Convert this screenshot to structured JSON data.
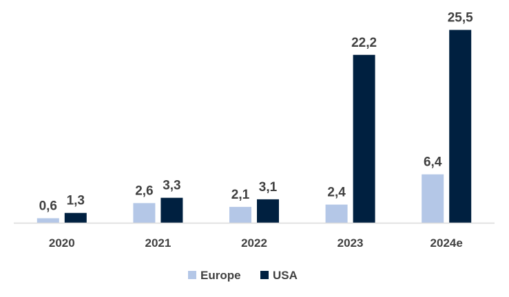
{
  "chart_data": {
    "type": "bar",
    "categories": [
      "2020",
      "2021",
      "2022",
      "2023",
      "2024e"
    ],
    "series": [
      {
        "name": "Europe",
        "values": [
          0.6,
          2.6,
          2.1,
          2.4,
          6.4
        ],
        "labels": [
          "0,6",
          "2,6",
          "2,1",
          "2,4",
          "6,4"
        ],
        "color": "#B4C7E7"
      },
      {
        "name": "USA",
        "values": [
          1.3,
          3.3,
          3.1,
          22.2,
          25.5
        ],
        "labels": [
          "1,3",
          "3,3",
          "3,1",
          "22,2",
          "25,5"
        ],
        "color": "#002040"
      }
    ],
    "title": "",
    "xlabel": "",
    "ylabel": "",
    "ylim": [
      0,
      26
    ],
    "grid": false,
    "legend_position": "bottom",
    "axis_color": "#D9D9D9"
  }
}
